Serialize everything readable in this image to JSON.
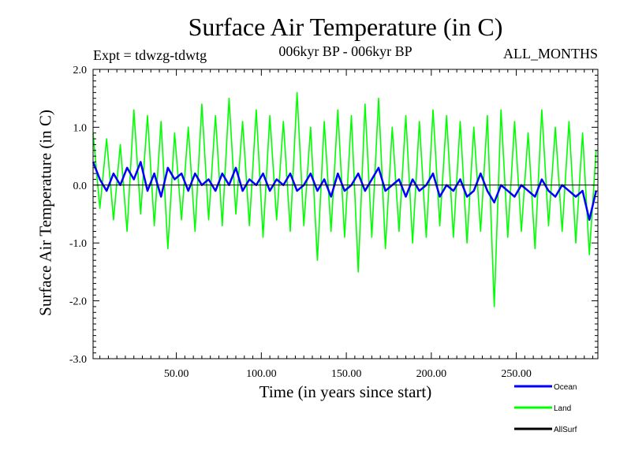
{
  "chart_data": {
    "type": "line",
    "title": "Surface Air Temperature (in C)",
    "subtitle_left": "Expt = tdwzg-tdwtg",
    "subtitle_center": "006kyr BP - 006kyr BP",
    "subtitle_right": "ALL_MONTHS",
    "xlabel": "Time (in years since start)",
    "ylabel": "Surface Air Temperature (in C)",
    "xlim": [
      1,
      298
    ],
    "ylim": [
      -3.0,
      2.0
    ],
    "x_ticks": [
      50,
      100,
      150,
      200,
      250
    ],
    "x_tick_labels": [
      "50.00",
      "100.00",
      "150.00",
      "200.00",
      "250.00"
    ],
    "y_ticks": [
      2.0,
      1.0,
      0.0,
      -1.0,
      -2.0,
      -3.0
    ],
    "y_tick_labels": [
      "2.0",
      "1.0",
      "0.0",
      "-1.0",
      "-2.0",
      "-3.0"
    ],
    "zero_line": 0.0,
    "legend_position": "bottom-right",
    "series": [
      {
        "name": "Land",
        "color": "#00ff00",
        "x": [
          1,
          5,
          9,
          13,
          17,
          21,
          25,
          29,
          33,
          37,
          41,
          45,
          49,
          53,
          57,
          61,
          65,
          69,
          73,
          77,
          81,
          85,
          89,
          93,
          97,
          101,
          105,
          109,
          113,
          117,
          121,
          125,
          129,
          133,
          137,
          141,
          145,
          149,
          153,
          157,
          161,
          165,
          169,
          173,
          177,
          181,
          185,
          189,
          193,
          197,
          201,
          205,
          209,
          213,
          217,
          221,
          225,
          229,
          233,
          237,
          241,
          245,
          249,
          253,
          257,
          261,
          265,
          269,
          273,
          277,
          281,
          285,
          289,
          293,
          297
        ],
        "values": [
          0.9,
          -0.4,
          0.8,
          -0.6,
          0.7,
          -0.8,
          1.3,
          -0.5,
          1.2,
          -0.7,
          1.1,
          -1.1,
          0.9,
          -0.6,
          1.0,
          -0.8,
          1.4,
          -0.6,
          1.2,
          -0.7,
          1.5,
          -0.5,
          1.1,
          -0.7,
          1.3,
          -0.9,
          1.2,
          -0.6,
          1.1,
          -0.8,
          1.6,
          -0.7,
          1.0,
          -1.3,
          1.1,
          -0.8,
          1.3,
          -0.9,
          1.2,
          -1.5,
          1.4,
          -0.9,
          1.5,
          -1.1,
          1.0,
          -0.8,
          1.2,
          -1.0,
          1.1,
          -0.9,
          1.3,
          -0.7,
          1.2,
          -0.9,
          1.1,
          -1.0,
          1.0,
          -0.8,
          1.2,
          -2.1,
          1.3,
          -0.9,
          1.1,
          -0.8,
          0.9,
          -1.1,
          1.3,
          -0.7,
          1.0,
          -0.8,
          1.1,
          -1.0,
          0.9,
          -1.2,
          0.6
        ]
      },
      {
        "name": "Ocean",
        "color": "#0000ff",
        "x": [
          1,
          5,
          9,
          13,
          17,
          21,
          25,
          29,
          33,
          37,
          41,
          45,
          49,
          53,
          57,
          61,
          65,
          69,
          73,
          77,
          81,
          85,
          89,
          93,
          97,
          101,
          105,
          109,
          113,
          117,
          121,
          125,
          129,
          133,
          137,
          141,
          145,
          149,
          153,
          157,
          161,
          165,
          169,
          173,
          177,
          181,
          185,
          189,
          193,
          197,
          201,
          205,
          209,
          213,
          217,
          221,
          225,
          229,
          233,
          237,
          241,
          245,
          249,
          253,
          257,
          261,
          265,
          269,
          273,
          277,
          281,
          285,
          289,
          293,
          297
        ],
        "values": [
          0.4,
          0.1,
          -0.1,
          0.2,
          0.0,
          0.3,
          0.1,
          0.4,
          -0.1,
          0.2,
          -0.2,
          0.3,
          0.1,
          0.2,
          -0.1,
          0.2,
          0.0,
          0.1,
          -0.1,
          0.2,
          0.0,
          0.3,
          -0.1,
          0.1,
          0.0,
          0.2,
          -0.1,
          0.1,
          0.0,
          0.2,
          -0.1,
          0.0,
          0.2,
          -0.1,
          0.1,
          -0.2,
          0.2,
          -0.1,
          0.0,
          0.2,
          -0.1,
          0.1,
          0.3,
          -0.1,
          0.0,
          0.1,
          -0.2,
          0.1,
          -0.1,
          0.0,
          0.2,
          -0.2,
          0.0,
          -0.1,
          0.1,
          -0.2,
          -0.1,
          0.2,
          -0.1,
          -0.3,
          0.0,
          -0.1,
          -0.2,
          0.0,
          -0.1,
          -0.2,
          0.1,
          -0.1,
          -0.2,
          0.0,
          -0.1,
          -0.2,
          -0.1,
          -0.6,
          -0.1
        ]
      },
      {
        "name": "AllSurf",
        "color": "#000000",
        "x": [],
        "values": []
      }
    ]
  }
}
